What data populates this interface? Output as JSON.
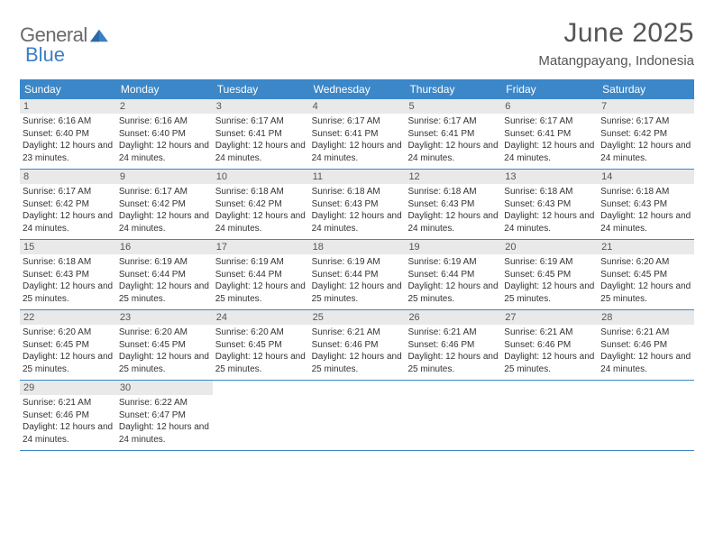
{
  "logo": {
    "text1": "General",
    "text2": "Blue"
  },
  "title": "June 2025",
  "location": "Matangpayang, Indonesia",
  "colors": {
    "header_bg": "#3b87c8",
    "daynum_bg": "#e9e9e9",
    "text_muted": "#555555",
    "rule": "#3b87c8"
  },
  "weekdays": [
    "Sunday",
    "Monday",
    "Tuesday",
    "Wednesday",
    "Thursday",
    "Friday",
    "Saturday"
  ],
  "weeks": [
    [
      {
        "n": "1",
        "sr": "6:16 AM",
        "ss": "6:40 PM",
        "dl": "12 hours and 23 minutes."
      },
      {
        "n": "2",
        "sr": "6:16 AM",
        "ss": "6:40 PM",
        "dl": "12 hours and 24 minutes."
      },
      {
        "n": "3",
        "sr": "6:17 AM",
        "ss": "6:41 PM",
        "dl": "12 hours and 24 minutes."
      },
      {
        "n": "4",
        "sr": "6:17 AM",
        "ss": "6:41 PM",
        "dl": "12 hours and 24 minutes."
      },
      {
        "n": "5",
        "sr": "6:17 AM",
        "ss": "6:41 PM",
        "dl": "12 hours and 24 minutes."
      },
      {
        "n": "6",
        "sr": "6:17 AM",
        "ss": "6:41 PM",
        "dl": "12 hours and 24 minutes."
      },
      {
        "n": "7",
        "sr": "6:17 AM",
        "ss": "6:42 PM",
        "dl": "12 hours and 24 minutes."
      }
    ],
    [
      {
        "n": "8",
        "sr": "6:17 AM",
        "ss": "6:42 PM",
        "dl": "12 hours and 24 minutes."
      },
      {
        "n": "9",
        "sr": "6:17 AM",
        "ss": "6:42 PM",
        "dl": "12 hours and 24 minutes."
      },
      {
        "n": "10",
        "sr": "6:18 AM",
        "ss": "6:42 PM",
        "dl": "12 hours and 24 minutes."
      },
      {
        "n": "11",
        "sr": "6:18 AM",
        "ss": "6:43 PM",
        "dl": "12 hours and 24 minutes."
      },
      {
        "n": "12",
        "sr": "6:18 AM",
        "ss": "6:43 PM",
        "dl": "12 hours and 24 minutes."
      },
      {
        "n": "13",
        "sr": "6:18 AM",
        "ss": "6:43 PM",
        "dl": "12 hours and 24 minutes."
      },
      {
        "n": "14",
        "sr": "6:18 AM",
        "ss": "6:43 PM",
        "dl": "12 hours and 24 minutes."
      }
    ],
    [
      {
        "n": "15",
        "sr": "6:18 AM",
        "ss": "6:43 PM",
        "dl": "12 hours and 25 minutes."
      },
      {
        "n": "16",
        "sr": "6:19 AM",
        "ss": "6:44 PM",
        "dl": "12 hours and 25 minutes."
      },
      {
        "n": "17",
        "sr": "6:19 AM",
        "ss": "6:44 PM",
        "dl": "12 hours and 25 minutes."
      },
      {
        "n": "18",
        "sr": "6:19 AM",
        "ss": "6:44 PM",
        "dl": "12 hours and 25 minutes."
      },
      {
        "n": "19",
        "sr": "6:19 AM",
        "ss": "6:44 PM",
        "dl": "12 hours and 25 minutes."
      },
      {
        "n": "20",
        "sr": "6:19 AM",
        "ss": "6:45 PM",
        "dl": "12 hours and 25 minutes."
      },
      {
        "n": "21",
        "sr": "6:20 AM",
        "ss": "6:45 PM",
        "dl": "12 hours and 25 minutes."
      }
    ],
    [
      {
        "n": "22",
        "sr": "6:20 AM",
        "ss": "6:45 PM",
        "dl": "12 hours and 25 minutes."
      },
      {
        "n": "23",
        "sr": "6:20 AM",
        "ss": "6:45 PM",
        "dl": "12 hours and 25 minutes."
      },
      {
        "n": "24",
        "sr": "6:20 AM",
        "ss": "6:45 PM",
        "dl": "12 hours and 25 minutes."
      },
      {
        "n": "25",
        "sr": "6:21 AM",
        "ss": "6:46 PM",
        "dl": "12 hours and 25 minutes."
      },
      {
        "n": "26",
        "sr": "6:21 AM",
        "ss": "6:46 PM",
        "dl": "12 hours and 25 minutes."
      },
      {
        "n": "27",
        "sr": "6:21 AM",
        "ss": "6:46 PM",
        "dl": "12 hours and 25 minutes."
      },
      {
        "n": "28",
        "sr": "6:21 AM",
        "ss": "6:46 PM",
        "dl": "12 hours and 24 minutes."
      }
    ],
    [
      {
        "n": "29",
        "sr": "6:21 AM",
        "ss": "6:46 PM",
        "dl": "12 hours and 24 minutes."
      },
      {
        "n": "30",
        "sr": "6:22 AM",
        "ss": "6:47 PM",
        "dl": "12 hours and 24 minutes."
      },
      null,
      null,
      null,
      null,
      null
    ]
  ],
  "labels": {
    "sunrise": "Sunrise:",
    "sunset": "Sunset:",
    "daylight": "Daylight:"
  }
}
